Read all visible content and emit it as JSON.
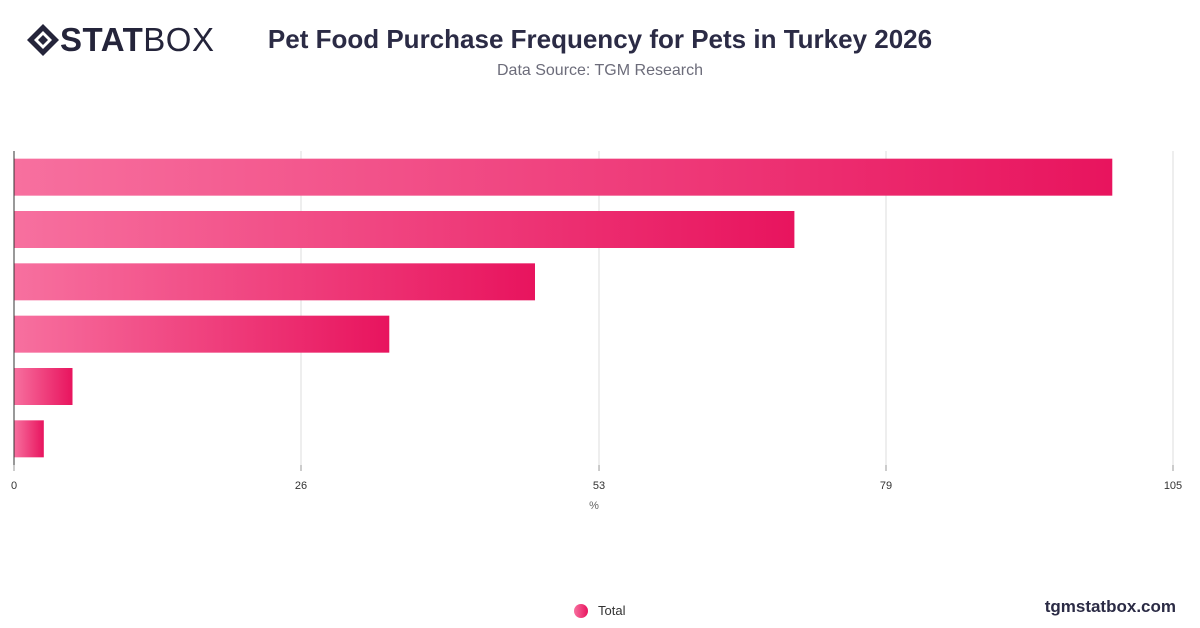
{
  "header": {
    "logo_strong": "STAT",
    "logo_light": "BOX",
    "title": "Pet Food Purchase Frequency for Pets in Turkey 2026",
    "subtitle": "Data Source: TGM Research"
  },
  "legend": {
    "label": "Total"
  },
  "footer": {
    "site": "tgmstatbox.com"
  },
  "colors": {
    "bar_start": "#f7709f",
    "bar_end": "#e8145e",
    "text": "#2b2b45",
    "grid": "#dddddd"
  },
  "chart_data": {
    "type": "bar",
    "orientation": "horizontal",
    "categories": [
      "",
      "",
      "",
      "",
      "",
      ""
    ],
    "series": [
      {
        "name": "Total",
        "values": [
          99.5,
          70.7,
          47.2,
          34.0,
          5.3,
          2.7
        ]
      }
    ],
    "xlabel": "%",
    "xlim": [
      0,
      105
    ],
    "xticks": [
      0,
      26,
      53,
      79,
      105
    ],
    "grid": true,
    "legend_position": "bottom-center"
  }
}
